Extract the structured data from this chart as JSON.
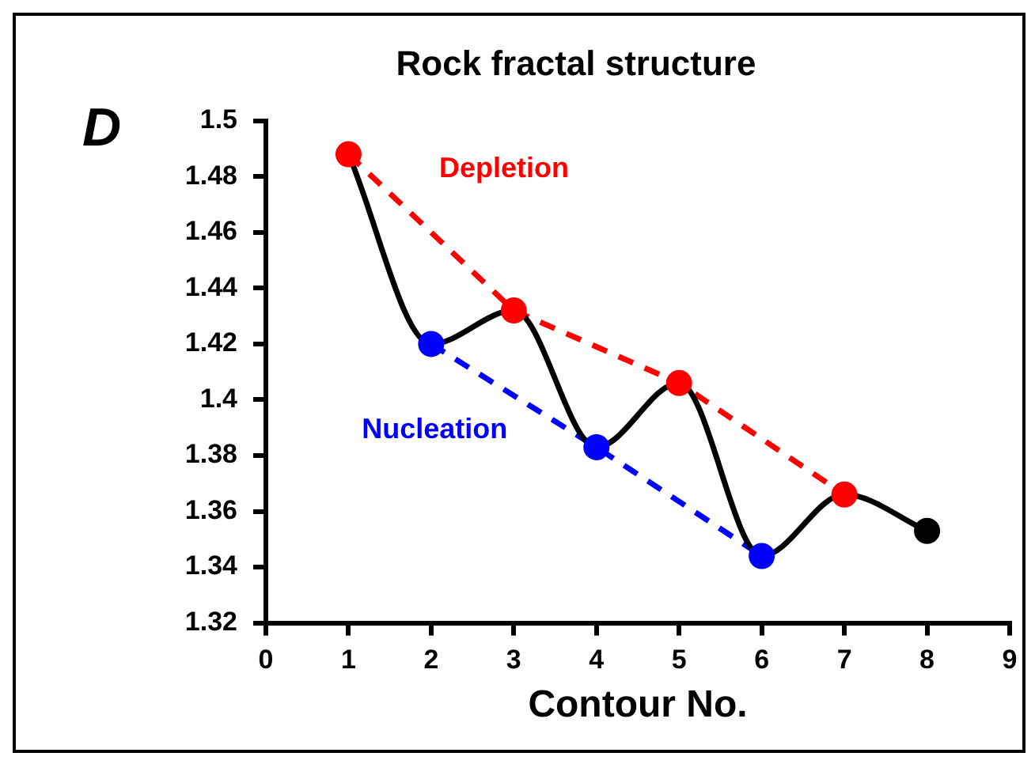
{
  "chart_data": {
    "type": "line",
    "title": "Rock fractal structure",
    "xlabel": "Contour No.",
    "ylabel": "D",
    "x": [
      1,
      2,
      3,
      4,
      5,
      6,
      7,
      8
    ],
    "series": [
      {
        "color": "#000000",
        "colors": [
          "#ff0000",
          "#0000ff",
          "#ff0000",
          "#0000ff",
          "#ff0000",
          "#0000ff",
          "#ff0000",
          "#000000"
        ],
        "values": [
          1.488,
          1.42,
          1.432,
          1.383,
          1.406,
          1.344,
          1.366,
          1.353
        ]
      },
      {
        "name": "Depletion",
        "color": "#ff0000",
        "x": [
          1,
          3,
          5,
          7
        ],
        "values": [
          1.488,
          1.432,
          1.406,
          1.366
        ],
        "line_style": "dashed",
        "marker": "none"
      },
      {
        "name": "Nucleation",
        "color": "#0000ff",
        "x": [
          2,
          4,
          6
        ],
        "values": [
          1.42,
          1.383,
          1.344
        ],
        "line_style": "dashed",
        "marker": "none"
      }
    ],
    "xlim": [
      0,
      9
    ],
    "xticks": [
      0,
      1,
      2,
      3,
      4,
      5,
      6,
      7,
      8,
      9
    ],
    "ylim": [
      1.32,
      1.5
    ],
    "yticks": [
      1.32,
      1.34,
      1.36,
      1.38,
      1.4,
      1.42,
      1.44,
      1.46,
      1.48,
      1.5
    ],
    "marker": "circle",
    "line_style": "solid",
    "grid": false,
    "legend": false
  }
}
